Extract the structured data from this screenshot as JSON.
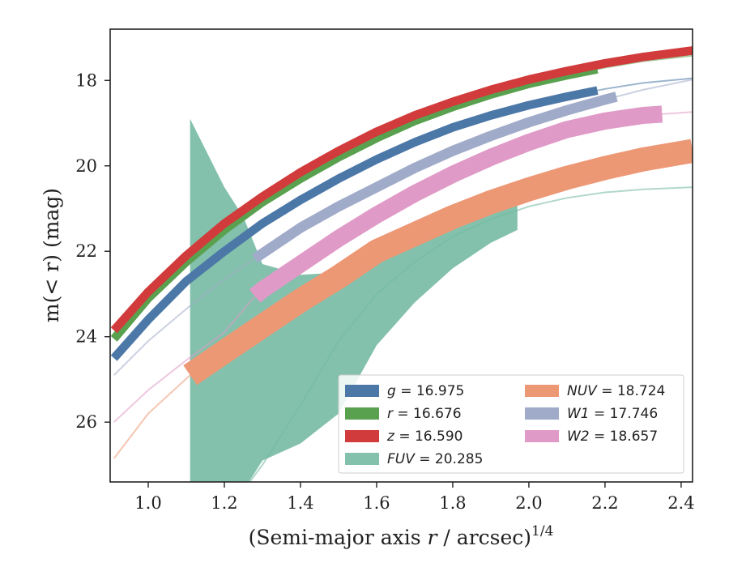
{
  "chart_data": {
    "type": "line",
    "title": "",
    "xlabel_main": "(Semi-major axis ",
    "xlabel_var": "r",
    "xlabel_tail": " / arcsec)",
    "xlabel_exp": "1/4",
    "ylabel_pre": "m(< r) (mag)",
    "xlim": [
      0.9,
      2.43
    ],
    "ylim": [
      27.4,
      16.8
    ],
    "y_inverted": true,
    "x_ticks": [
      1.0,
      1.2,
      1.4,
      1.6,
      1.8,
      2.0,
      2.2,
      2.4
    ],
    "x_tick_labels": [
      "1.0",
      "1.2",
      "1.4",
      "1.6",
      "1.8",
      "2.0",
      "2.2",
      "2.4"
    ],
    "y_ticks": [
      18,
      20,
      22,
      24,
      26
    ],
    "y_tick_labels": [
      "18",
      "20",
      "22",
      "24",
      "26"
    ],
    "grid": false,
    "legend_position": "lower-right",
    "series": [
      {
        "name": "g = 16.975",
        "legend_sym": "g",
        "legend_val": "16.975",
        "color": "#4c78a8",
        "x": [
          0.91,
          1.0,
          1.1,
          1.2,
          1.3,
          1.4,
          1.5,
          1.6,
          1.7,
          1.8,
          1.9,
          2.0,
          2.1,
          2.2,
          2.3,
          2.43
        ],
        "y": [
          24.5,
          23.6,
          22.7,
          22.0,
          21.35,
          20.8,
          20.3,
          19.85,
          19.45,
          19.1,
          18.82,
          18.58,
          18.38,
          18.2,
          18.06,
          17.95
        ],
        "opaque_until": 2.18,
        "band": 0.1
      },
      {
        "name": "r = 16.676",
        "legend_sym": "r",
        "legend_val": "16.676",
        "color": "#59a14f",
        "x": [
          0.91,
          1.0,
          1.1,
          1.2,
          1.3,
          1.4,
          1.5,
          1.6,
          1.7,
          1.8,
          1.9,
          2.0,
          2.1,
          2.2,
          2.3,
          2.43
        ],
        "y": [
          24.05,
          23.1,
          22.25,
          21.5,
          20.85,
          20.3,
          19.8,
          19.35,
          18.95,
          18.62,
          18.33,
          18.08,
          17.88,
          17.7,
          17.55,
          17.42
        ],
        "opaque_until": 2.18,
        "band": 0.1
      },
      {
        "name": "z = 16.590",
        "legend_sym": "z",
        "legend_val": "16.590",
        "color": "#d13b3b",
        "x": [
          0.91,
          1.0,
          1.1,
          1.2,
          1.3,
          1.4,
          1.5,
          1.6,
          1.7,
          1.8,
          1.9,
          2.0,
          2.1,
          2.2,
          2.3,
          2.43
        ],
        "y": [
          23.85,
          22.95,
          22.1,
          21.35,
          20.72,
          20.15,
          19.65,
          19.2,
          18.82,
          18.5,
          18.22,
          17.98,
          17.78,
          17.6,
          17.45,
          17.3
        ],
        "opaque_until": 2.43,
        "band": 0.1
      },
      {
        "name": "NUV = 18.724",
        "legend_sym": "NUV",
        "legend_val": "18.724",
        "color": "#ed9875",
        "x": [
          0.91,
          1.0,
          1.11,
          1.2,
          1.3,
          1.4,
          1.5,
          1.6,
          1.7,
          1.8,
          1.9,
          2.0,
          2.1,
          2.2,
          2.3,
          2.43
        ],
        "y": [
          26.85,
          25.8,
          24.9,
          24.35,
          23.75,
          23.15,
          22.6,
          22.0,
          21.6,
          21.2,
          20.85,
          20.55,
          20.28,
          20.05,
          19.85,
          19.65
        ],
        "opaque_from": 1.11,
        "opaque_until": 2.43,
        "band": 0.28
      },
      {
        "name": "W1 = 17.746",
        "legend_sym": "W1",
        "legend_val": "17.746",
        "color": "#a0abc9",
        "x": [
          0.91,
          1.0,
          1.1,
          1.2,
          1.3,
          1.4,
          1.5,
          1.6,
          1.7,
          1.8,
          1.9,
          2.0,
          2.1,
          2.2,
          2.3,
          2.43
        ],
        "y": [
          24.9,
          24.1,
          23.35,
          22.65,
          22.05,
          21.45,
          20.95,
          20.5,
          20.05,
          19.65,
          19.3,
          18.98,
          18.7,
          18.45,
          18.22,
          17.98
        ],
        "opaque_from": 1.28,
        "opaque_until": 2.23,
        "band": 0.12
      },
      {
        "name": "W2 = 18.657",
        "legend_sym": "W2",
        "legend_val": "18.657",
        "color": "#e09ac7",
        "x": [
          0.91,
          1.0,
          1.1,
          1.2,
          1.28,
          1.3,
          1.4,
          1.5,
          1.6,
          1.7,
          1.8,
          1.9,
          2.0,
          2.1,
          2.2,
          2.3,
          2.43
        ],
        "y": [
          26.0,
          25.25,
          24.55,
          23.9,
          23.05,
          22.9,
          22.3,
          21.7,
          21.15,
          20.65,
          20.2,
          19.8,
          19.45,
          19.15,
          18.95,
          18.82,
          18.74
        ],
        "opaque_from": 1.28,
        "opaque_until": 2.35,
        "band": 0.2
      },
      {
        "name": "FUV = 20.285",
        "legend_sym": "FUV",
        "legend_val": "20.285",
        "color": "#72b8a0",
        "x": [
          1.25,
          1.3,
          1.4,
          1.5,
          1.6,
          1.7,
          1.8,
          1.9,
          2.0,
          2.1,
          2.2,
          2.3,
          2.43
        ],
        "y": [
          27.6,
          27.0,
          25.6,
          24.1,
          23.0,
          22.25,
          21.65,
          21.25,
          20.95,
          20.75,
          20.62,
          20.55,
          20.5
        ],
        "band_x": [
          1.11,
          1.2,
          1.25,
          1.3,
          1.4,
          1.5,
          1.6,
          1.7,
          1.8,
          1.9,
          1.97
        ],
        "band_upper": [
          18.9,
          20.5,
          21.2,
          22.3,
          22.55,
          22.5,
          22.3,
          21.9,
          21.5,
          21.1,
          20.85
        ],
        "band_lower": [
          27.6,
          27.6,
          27.6,
          26.9,
          26.5,
          25.8,
          24.2,
          23.2,
          22.4,
          21.8,
          21.5
        ],
        "opaque_from": 1.97,
        "band": 0.0
      }
    ]
  }
}
